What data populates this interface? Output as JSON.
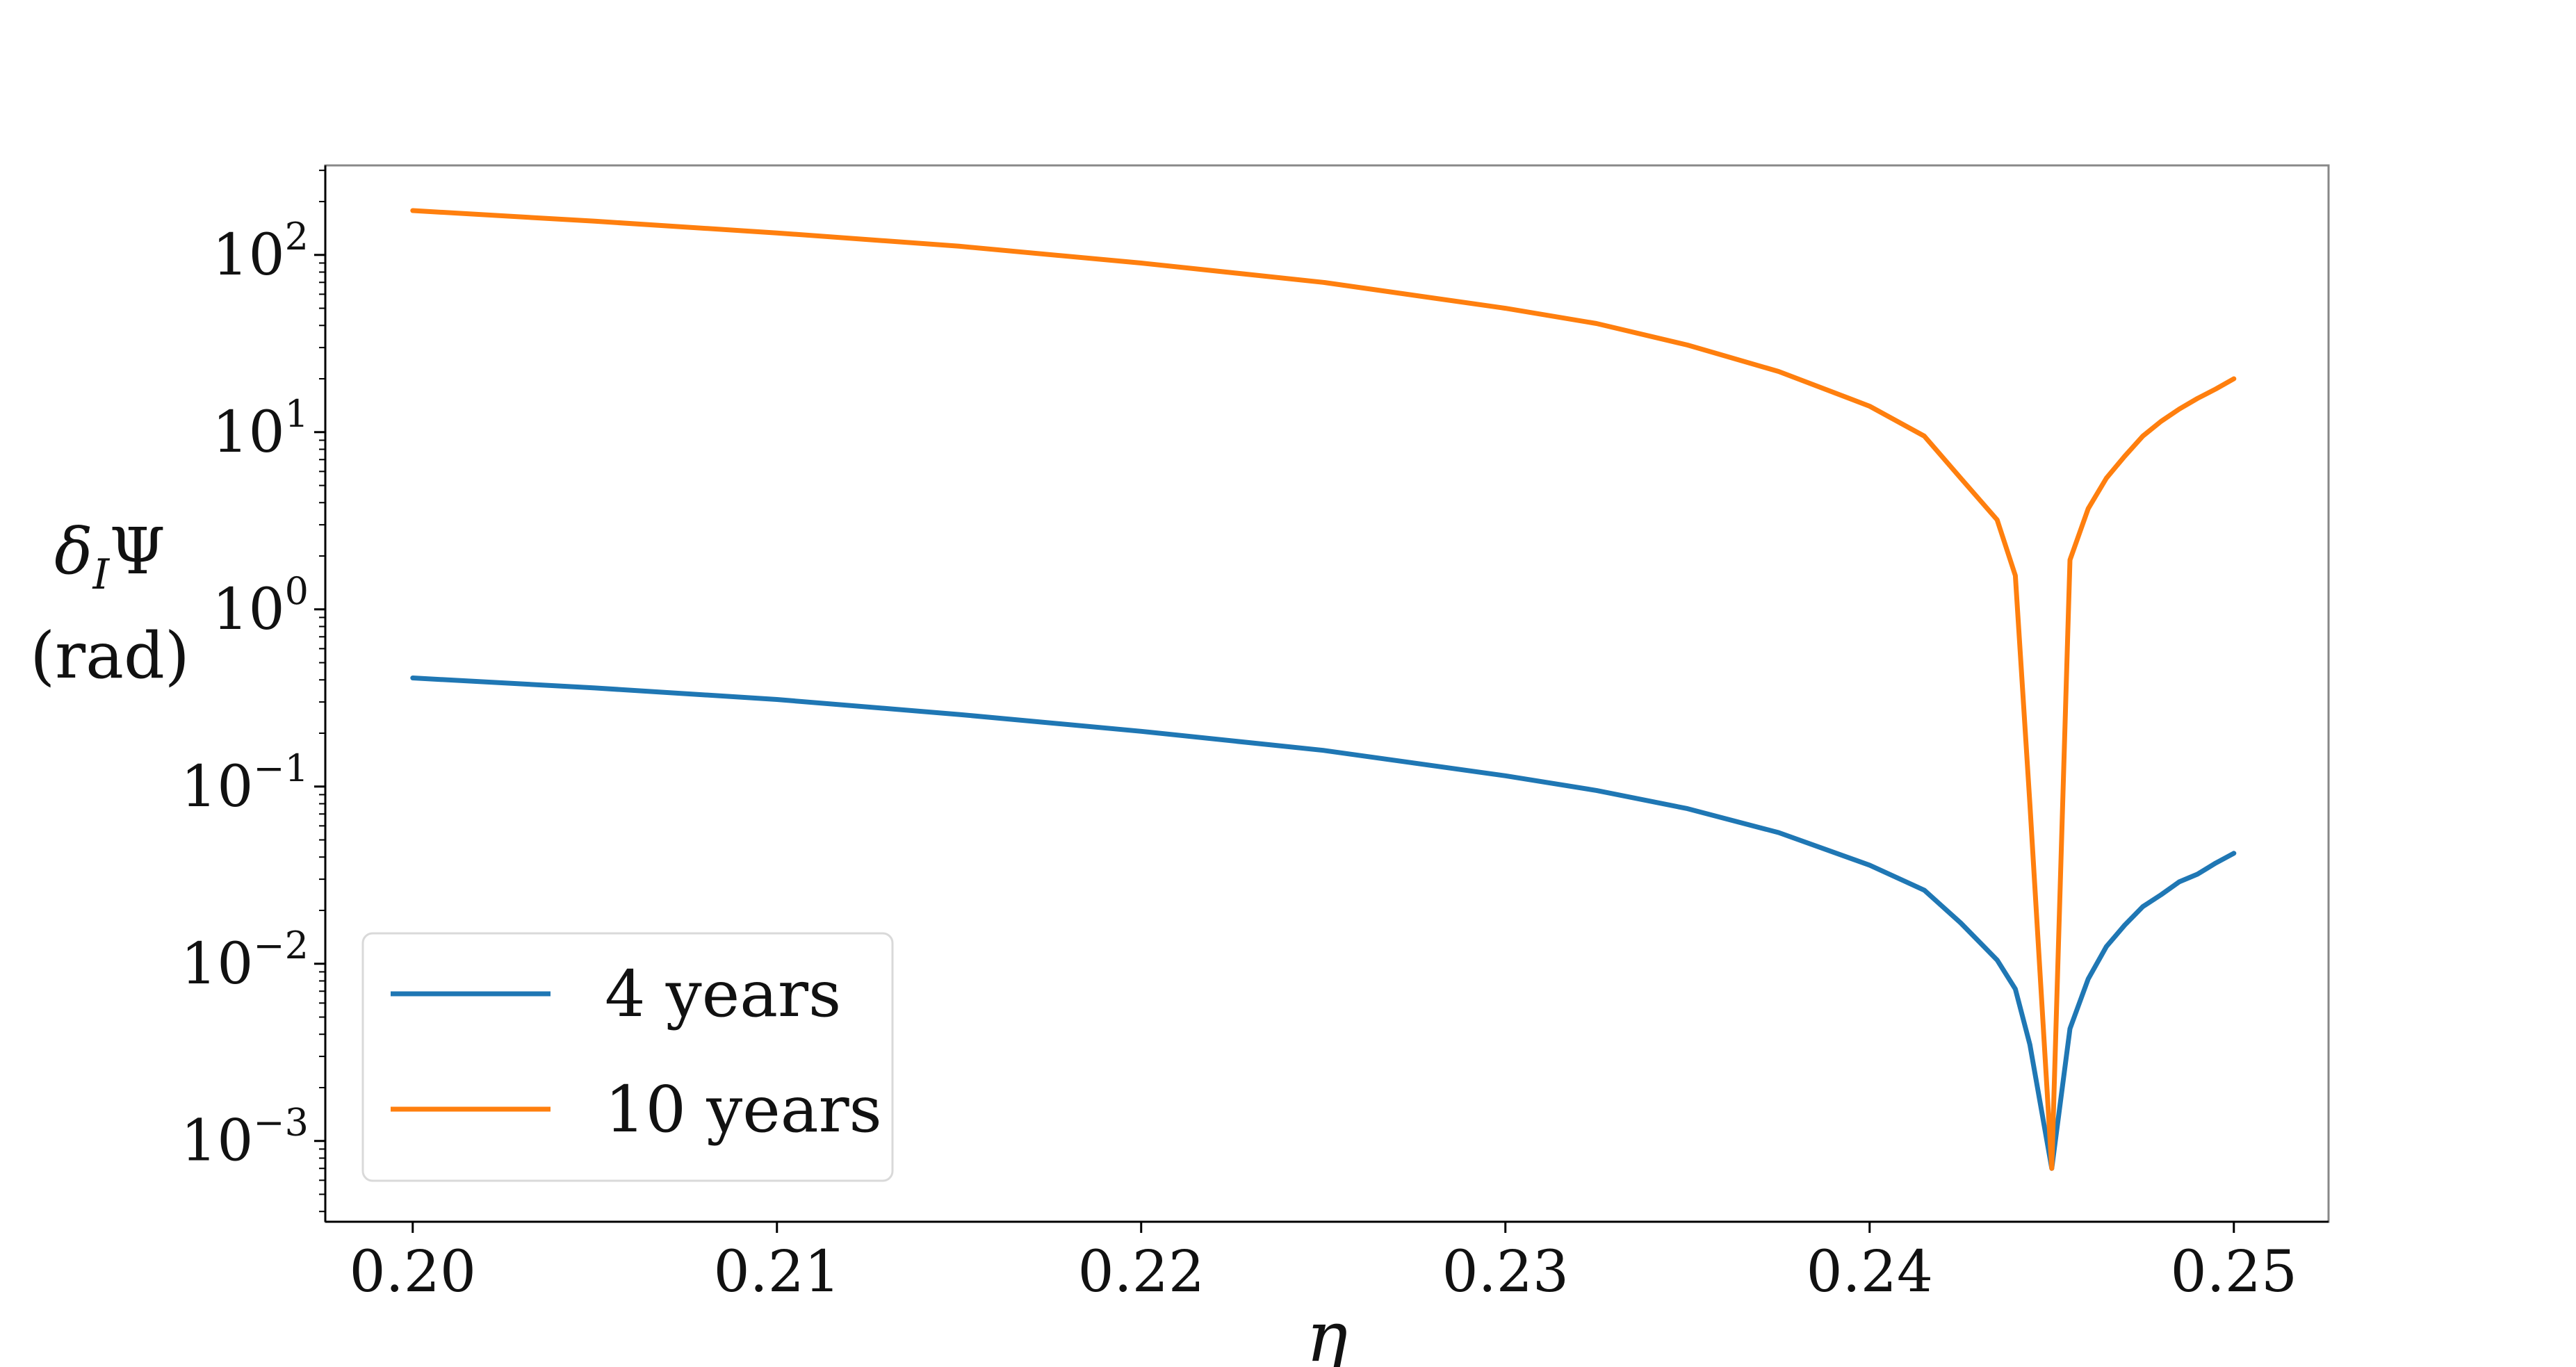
{
  "colors": {
    "series_4y": "#1f77b4",
    "series_10y": "#ff7f0e",
    "axes": "#000000",
    "frame": "#888888"
  },
  "labels": {
    "xlabel": "η",
    "ylabel_line1": "δ",
    "ylabel_sub": "I",
    "ylabel_psi": "Ψ",
    "ylabel_line2": "(rad)"
  },
  "legend": {
    "placement": "lower-left",
    "items": [
      "4 years",
      "10 years"
    ]
  },
  "chart_data": {
    "type": "line",
    "xlabel": "η",
    "ylabel": "δIΨ (rad)",
    "xlim": [
      0.1976,
      0.2526
    ],
    "ylim": [
      0.00035,
      320
    ],
    "yscale": "log",
    "grid": false,
    "legend_placement": "lower-left",
    "xticks": [
      0.2,
      0.21,
      0.22,
      0.23,
      0.24,
      0.25
    ],
    "xtick_labels": [
      "0.20",
      "0.21",
      "0.22",
      "0.23",
      "0.24",
      "0.25"
    ],
    "yticks": [
      0.001,
      0.01,
      0.1,
      1,
      10,
      100
    ],
    "ytick_labels": [
      {
        "base": "10",
        "exp": "−3"
      },
      {
        "base": "10",
        "exp": "−2"
      },
      {
        "base": "10",
        "exp": "−1"
      },
      {
        "base": "10",
        "exp": "0"
      },
      {
        "base": "10",
        "exp": "1"
      },
      {
        "base": "10",
        "exp": "2"
      }
    ],
    "series": [
      {
        "name": "4 years",
        "x": [
          0.2,
          0.205,
          0.21,
          0.215,
          0.22,
          0.225,
          0.23,
          0.2325,
          0.235,
          0.2375,
          0.24,
          0.2415,
          0.2425,
          0.2435,
          0.244,
          0.2444,
          0.245,
          0.2455,
          0.246,
          0.2465,
          0.247,
          0.2475,
          0.248,
          0.2485,
          0.249,
          0.2495,
          0.25
        ],
        "y": [
          0.41,
          0.36,
          0.31,
          0.255,
          0.205,
          0.16,
          0.115,
          0.095,
          0.075,
          0.055,
          0.036,
          0.026,
          0.017,
          0.0105,
          0.0072,
          0.0035,
          0.0007,
          0.0043,
          0.0082,
          0.0125,
          0.0165,
          0.021,
          0.0245,
          0.029,
          0.032,
          0.037,
          0.042
        ]
      },
      {
        "name": "10 years",
        "x": [
          0.2,
          0.205,
          0.21,
          0.215,
          0.22,
          0.225,
          0.23,
          0.2325,
          0.235,
          0.2375,
          0.24,
          0.2415,
          0.2425,
          0.2435,
          0.244,
          0.2444,
          0.245,
          0.2455,
          0.246,
          0.2465,
          0.247,
          0.2475,
          0.248,
          0.2485,
          0.249,
          0.2495,
          0.25
        ],
        "y": [
          178,
          155,
          133,
          112,
          90,
          70,
          50,
          41,
          31,
          22,
          14,
          9.5,
          5.5,
          3.2,
          1.55,
          0.08,
          0.0007,
          1.9,
          3.7,
          5.5,
          7.3,
          9.5,
          11.5,
          13.5,
          15.5,
          17.5,
          20
        ]
      }
    ]
  }
}
